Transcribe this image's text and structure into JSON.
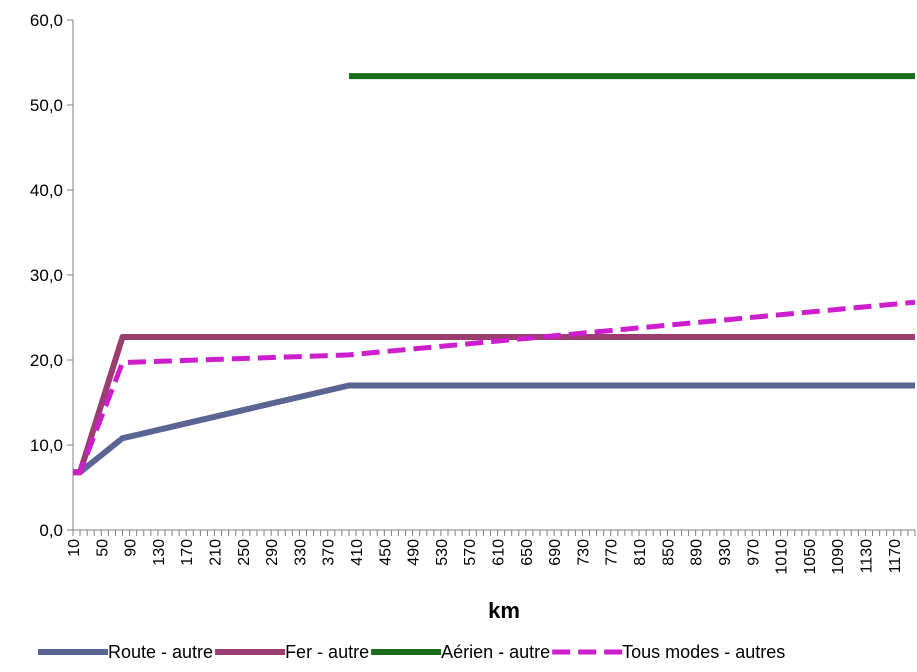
{
  "chart_data": {
    "type": "line",
    "title": "",
    "xlabel": "km",
    "ylabel": "",
    "xlim": [
      10,
      1200
    ],
    "ylim": [
      0,
      60
    ],
    "yticks": [
      "0,0",
      "10,0",
      "20,0",
      "30,0",
      "40,0",
      "50,0",
      "60,0"
    ],
    "yticks_values": [
      0,
      10,
      20,
      30,
      40,
      50,
      60
    ],
    "x_tick_step": 10,
    "x_label_step": 40,
    "xtick_labels": [
      "10",
      "50",
      "90",
      "130",
      "170",
      "210",
      "250",
      "290",
      "330",
      "370",
      "410",
      "450",
      "490",
      "530",
      "570",
      "610",
      "650",
      "690",
      "730",
      "770",
      "810",
      "850",
      "890",
      "930",
      "970",
      "1010",
      "1050",
      "1090",
      "1130",
      "1170"
    ],
    "grid": false,
    "legend_position": "bottom",
    "series": [
      {
        "name": "Route - autre",
        "color": "#5b6593",
        "dash": "solid",
        "points": [
          [
            10,
            6.8
          ],
          [
            20,
            6.8
          ],
          [
            80,
            10.8
          ],
          [
            400,
            17.0
          ],
          [
            1200,
            17.0
          ]
        ]
      },
      {
        "name": "Fer - autre",
        "color": "#9b3d6e",
        "dash": "solid",
        "points": [
          [
            10,
            6.8
          ],
          [
            20,
            6.8
          ],
          [
            80,
            22.7
          ],
          [
            1200,
            22.7
          ]
        ]
      },
      {
        "name": "Aérien - autre",
        "color": "#1a6e1a",
        "dash": "solid",
        "points": [
          [
            400,
            53.4
          ],
          [
            1200,
            53.4
          ]
        ]
      },
      {
        "name": "Tous modes - autres",
        "color": "#cc1ecc",
        "dash": "dashed",
        "points": [
          [
            10,
            6.8
          ],
          [
            20,
            6.8
          ],
          [
            80,
            19.7
          ],
          [
            400,
            20.6
          ],
          [
            1200,
            26.8
          ]
        ]
      }
    ]
  }
}
